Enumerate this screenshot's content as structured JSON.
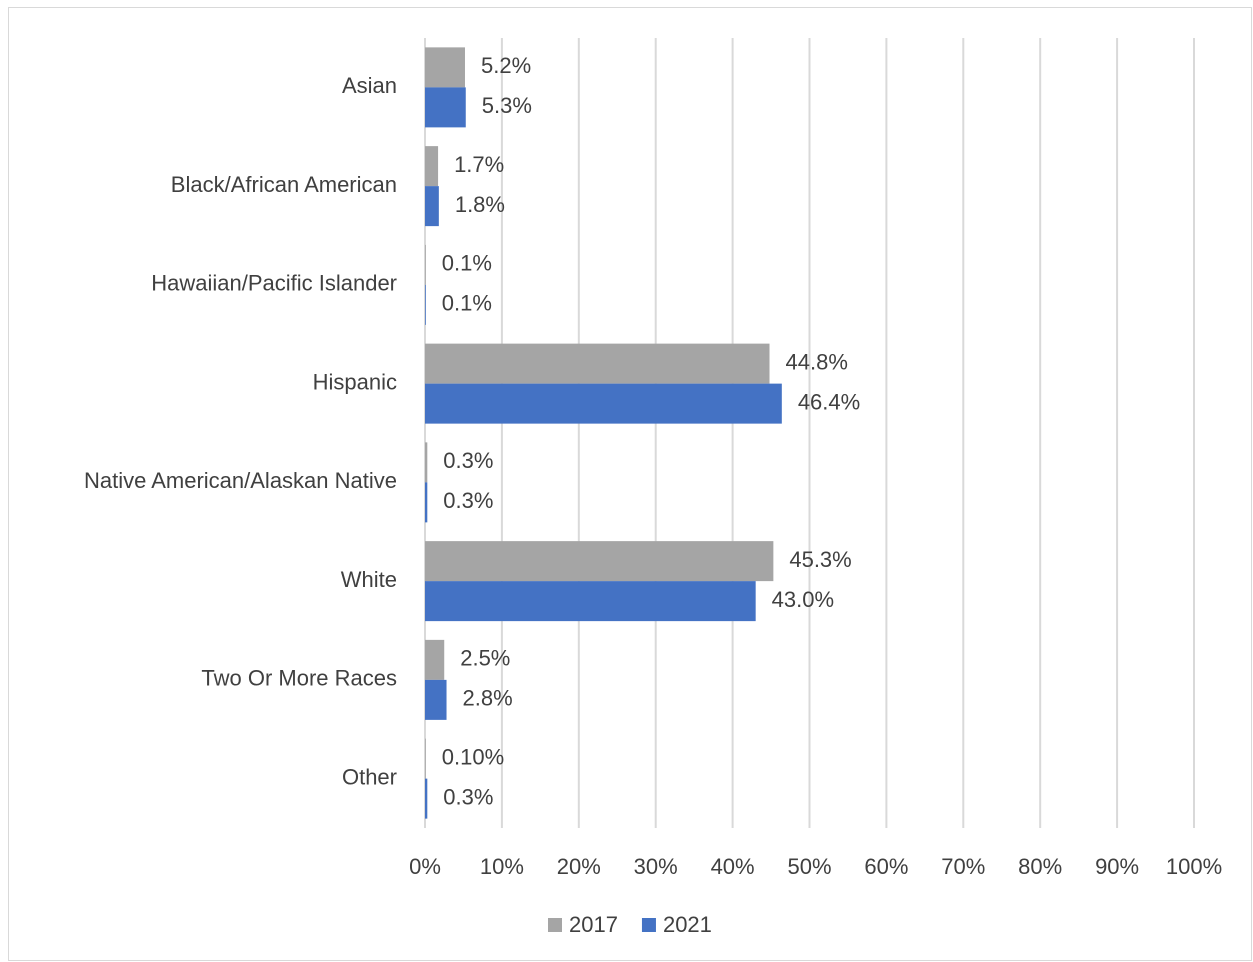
{
  "chart_data": {
    "type": "hbar",
    "categories": [
      "Asian",
      "Black/African American",
      "Hawaiian/Pacific Islander",
      "Hispanic",
      "Native American/Alaskan Native",
      "White",
      "Two Or More Races",
      "Other"
    ],
    "series": [
      {
        "name": "2017",
        "color": "#a5a5a5",
        "values": [
          5.2,
          1.7,
          0.1,
          44.8,
          0.3,
          45.3,
          2.5,
          0.1
        ],
        "value_labels": [
          "5.2%",
          "1.7%",
          "0.1%",
          "44.8%",
          "0.3%",
          "45.3%",
          "2.5%",
          "0.10%"
        ]
      },
      {
        "name": "2021",
        "color": "#4472c4",
        "values": [
          5.3,
          1.8,
          0.1,
          46.4,
          0.3,
          43.0,
          2.8,
          0.3
        ],
        "value_labels": [
          "5.3%",
          "1.8%",
          "0.1%",
          "46.4%",
          "0.3%",
          "43.0%",
          "2.8%",
          "0.3%"
        ]
      }
    ],
    "xlim": [
      0,
      100
    ],
    "xticks": [
      {
        "value": 0,
        "label": "0%"
      },
      {
        "value": 10,
        "label": "10%"
      },
      {
        "value": 20,
        "label": "20%"
      },
      {
        "value": 30,
        "label": "30%"
      },
      {
        "value": 40,
        "label": "40%"
      },
      {
        "value": 50,
        "label": "50%"
      },
      {
        "value": 60,
        "label": "60%"
      },
      {
        "value": 70,
        "label": "70%"
      },
      {
        "value": 80,
        "label": "80%"
      },
      {
        "value": 90,
        "label": "90%"
      },
      {
        "value": 100,
        "label": "100%"
      }
    ],
    "grid": true,
    "legend": "bottom"
  }
}
